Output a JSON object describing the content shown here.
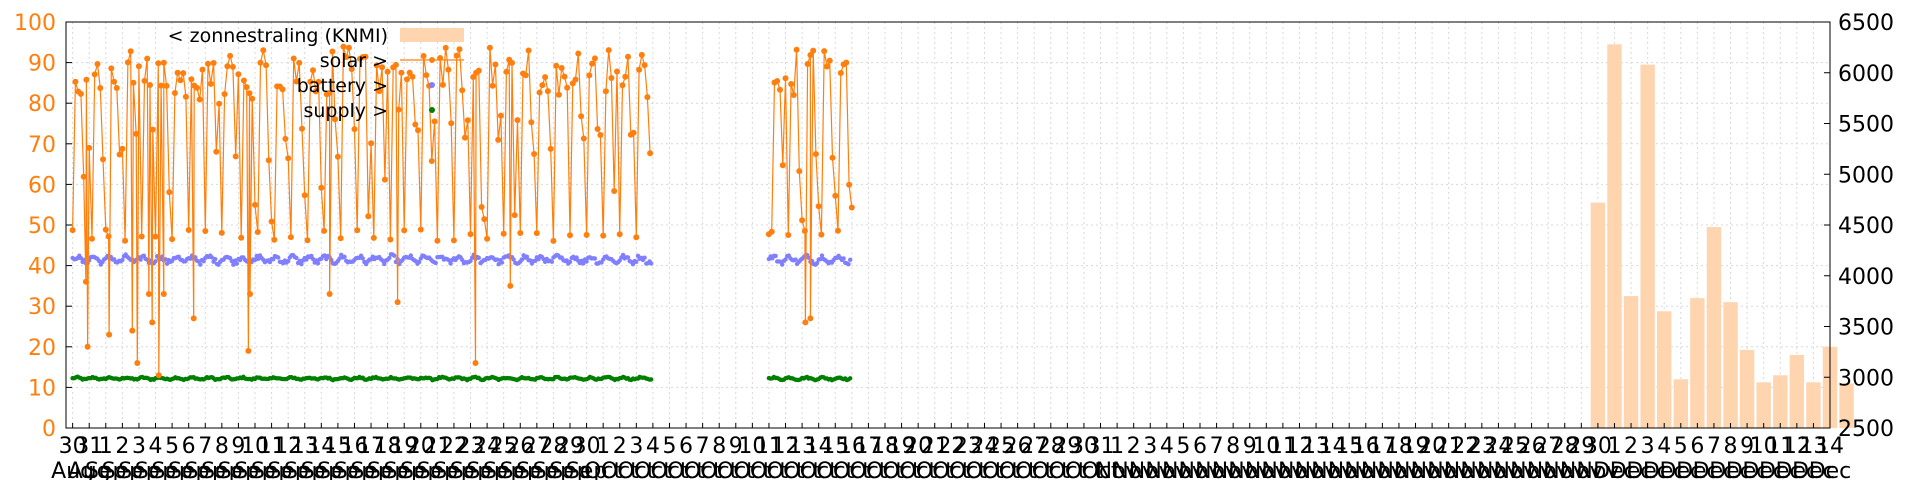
{
  "chart_data": {
    "type": "line",
    "grid": true,
    "legend_placement": "top-left",
    "y_left": {
      "ylim": [
        0,
        100
      ],
      "ticks": [
        0,
        10,
        20,
        30,
        40,
        50,
        60,
        70,
        80,
        90,
        100
      ]
    },
    "y_right": {
      "ylim": [
        2500,
        6500
      ],
      "ticks": [
        2500,
        3000,
        3500,
        4000,
        4500,
        5000,
        5500,
        6000,
        6500
      ]
    },
    "x_ticks": {
      "day_sequence": [
        "30",
        "31",
        "1",
        "2",
        "3",
        "4",
        "5",
        "6",
        "7",
        "8",
        "9",
        "10",
        "11",
        "12",
        "13",
        "14",
        "15",
        "16",
        "17",
        "18",
        "19",
        "20",
        "21",
        "22",
        "23",
        "24",
        "25",
        "26",
        "27",
        "28",
        "29",
        "30",
        "1",
        "2",
        "3",
        "4",
        "5",
        "6",
        "7",
        "8",
        "9",
        "10",
        "11",
        "12",
        "13",
        "14",
        "15",
        "16",
        "17",
        "18",
        "19",
        "20",
        "21",
        "22",
        "23",
        "24",
        "25",
        "26",
        "27",
        "28",
        "29",
        "30",
        "31",
        "1",
        "2",
        "3",
        "4",
        "5",
        "6",
        "7",
        "8",
        "9",
        "10",
        "11",
        "12",
        "13",
        "14",
        "15",
        "16",
        "17",
        "18",
        "19",
        "20",
        "21",
        "22",
        "23",
        "24",
        "25",
        "26",
        "27",
        "28",
        "29",
        "30",
        "1",
        "2",
        "3",
        "4",
        "5",
        "6",
        "7",
        "8",
        "9",
        "10",
        "11",
        "12",
        "13",
        "14"
      ],
      "month_sequence": [
        "Aug",
        "Aug",
        "Sep",
        "Sep",
        "Sep",
        "Sep",
        "Sep",
        "Sep",
        "Sep",
        "Sep",
        "Sep",
        "Sep",
        "Sep",
        "Sep",
        "Sep",
        "Sep",
        "Sep",
        "Sep",
        "Sep",
        "Sep",
        "Sep",
        "Sep",
        "Sep",
        "Sep",
        "Sep",
        "Sep",
        "Sep",
        "Sep",
        "Sep",
        "Sep",
        "Sep",
        "Sep",
        "Oct",
        "Oct",
        "Oct",
        "Oct",
        "Oct",
        "Oct",
        "Oct",
        "Oct",
        "Oct",
        "Oct",
        "Oct",
        "Oct",
        "Oct",
        "Oct",
        "Oct",
        "Oct",
        "Oct",
        "Oct",
        "Oct",
        "Oct",
        "Oct",
        "Oct",
        "Oct",
        "Oct",
        "Oct",
        "Oct",
        "Oct",
        "Oct",
        "Oct",
        "Oct",
        "Oct",
        "Nov",
        "Nov",
        "Nov",
        "Nov",
        "Nov",
        "Nov",
        "Nov",
        "Nov",
        "Nov",
        "Nov",
        "Nov",
        "Nov",
        "Nov",
        "Nov",
        "Nov",
        "Nov",
        "Nov",
        "Nov",
        "Nov",
        "Nov",
        "Nov",
        "Nov",
        "Nov",
        "Nov",
        "Nov",
        "Nov",
        "Nov",
        "Nov",
        "Nov",
        "Nov",
        "Dec",
        "Dec",
        "Dec",
        "Dec",
        "Dec",
        "Dec",
        "Dec",
        "Dec",
        "Dec",
        "Dec",
        "Dec",
        "Dec",
        "Dec",
        "Dec"
      ]
    },
    "legend": [
      {
        "label": "< zonnestraling (KNMI)",
        "color": "#ffd5b0",
        "kind": "bar"
      },
      {
        "label": "solar >",
        "color": "#ff7f0e",
        "kind": "line-point"
      },
      {
        "label": "battery >",
        "color": "#7f7fff",
        "kind": "point"
      },
      {
        "label": "supply >",
        "color": "#007f00",
        "kind": "point"
      }
    ],
    "series": [
      {
        "name": "< zonnestraling (KNMI)",
        "axis": "right",
        "type": "bar",
        "color": "#ffd5b0",
        "day_index": [
          92,
          93,
          94,
          95,
          96,
          97,
          98,
          99,
          100,
          101,
          102,
          103,
          104,
          105,
          106,
          107
        ],
        "values": [
          4720,
          6280,
          3800,
          6080,
          3650,
          2980,
          3780,
          4480,
          3740,
          3270,
          2950,
          3020,
          3220,
          2950,
          3300,
          2940
        ]
      },
      {
        "name": "solar >",
        "axis": "left",
        "type": "line",
        "color": "#ff7f0e",
        "ranges": [
          [
            0,
            35
          ],
          [
            42,
            47
          ]
        ],
        "base": 46,
        "peak": 94,
        "outliers": [
          {
            "day_index": 0.8,
            "value": 36
          },
          {
            "day_index": 0.9,
            "value": 20
          },
          {
            "day_index": 2.2,
            "value": 23
          },
          {
            "day_index": 3.6,
            "value": 24
          },
          {
            "day_index": 3.9,
            "value": 16
          },
          {
            "day_index": 4.6,
            "value": 33
          },
          {
            "day_index": 4.8,
            "value": 26
          },
          {
            "day_index": 5.2,
            "value": 13
          },
          {
            "day_index": 5.5,
            "value": 33
          },
          {
            "day_index": 7.3,
            "value": 27
          },
          {
            "day_index": 10.6,
            "value": 19
          },
          {
            "day_index": 10.7,
            "value": 33
          },
          {
            "day_index": 15.5,
            "value": 33
          },
          {
            "day_index": 19.6,
            "value": 31
          },
          {
            "day_index": 24.3,
            "value": 16
          },
          {
            "day_index": 26.4,
            "value": 35
          },
          {
            "day_index": 44.2,
            "value": 26
          },
          {
            "day_index": 44.5,
            "value": 27
          }
        ]
      },
      {
        "name": "battery >",
        "axis": "left",
        "type": "scatter",
        "color": "#7f7fff",
        "ranges": [
          [
            0,
            35
          ],
          [
            42,
            47
          ]
        ],
        "base": 41.5,
        "amplitude": 1.2
      },
      {
        "name": "supply >",
        "axis": "left",
        "type": "scatter",
        "color": "#007f00",
        "ranges": [
          [
            0,
            35
          ],
          [
            42,
            47
          ]
        ],
        "base": 12.2,
        "amplitude": 0.4
      }
    ]
  }
}
